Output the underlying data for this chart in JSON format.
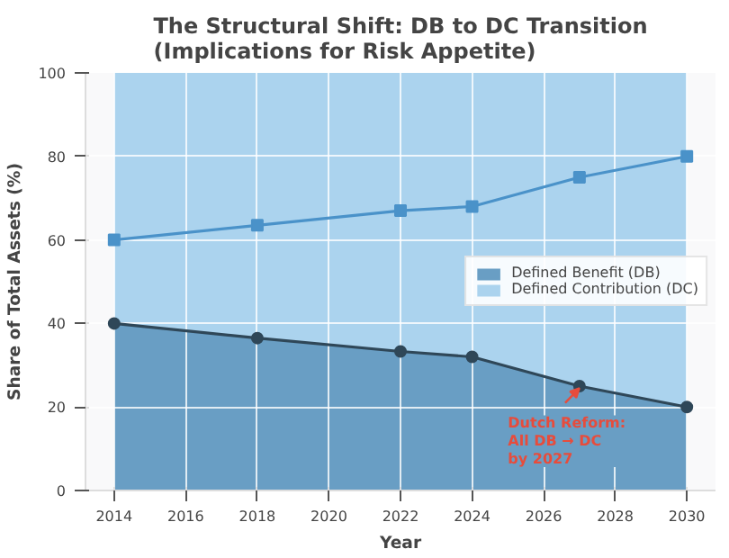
{
  "chart_data": {
    "type": "area",
    "title": "The Structural Shift: DB to DC Transition\n(Implications for Risk Appetite)",
    "xlabel": "Year",
    "ylabel": "Share of Total Assets (%)",
    "x": [
      2014,
      2018,
      2022,
      2024,
      2027,
      2030
    ],
    "stacked": true,
    "series": [
      {
        "name": "Defined Benefit (DB)",
        "color": "#699ec4",
        "marker": "circle",
        "values": [
          40,
          36.5,
          33.3,
          32,
          25,
          20
        ]
      },
      {
        "name": "Defined Contribution (DC)",
        "color": "#abd3ee",
        "values": [
          60,
          63.5,
          66.7,
          68,
          75,
          80
        ]
      },
      {
        "type": "line",
        "color": "#4a92c9",
        "marker": "square",
        "values": [
          60,
          63.5,
          67,
          68,
          75,
          80
        ]
      }
    ],
    "xlim": [
      2013.2,
      2030.8
    ],
    "ylim": [
      0,
      100
    ],
    "xticks": [
      2014,
      2016,
      2018,
      2020,
      2022,
      2024,
      2026,
      2028,
      2030
    ],
    "yticks": [
      0,
      20,
      40,
      60,
      80,
      100
    ],
    "grid": true,
    "legend": "right",
    "annotations": [
      {
        "text": "Dutch Reform:\nAll DB → DC\nby 2027",
        "x": 2027,
        "y": 25
      }
    ]
  }
}
